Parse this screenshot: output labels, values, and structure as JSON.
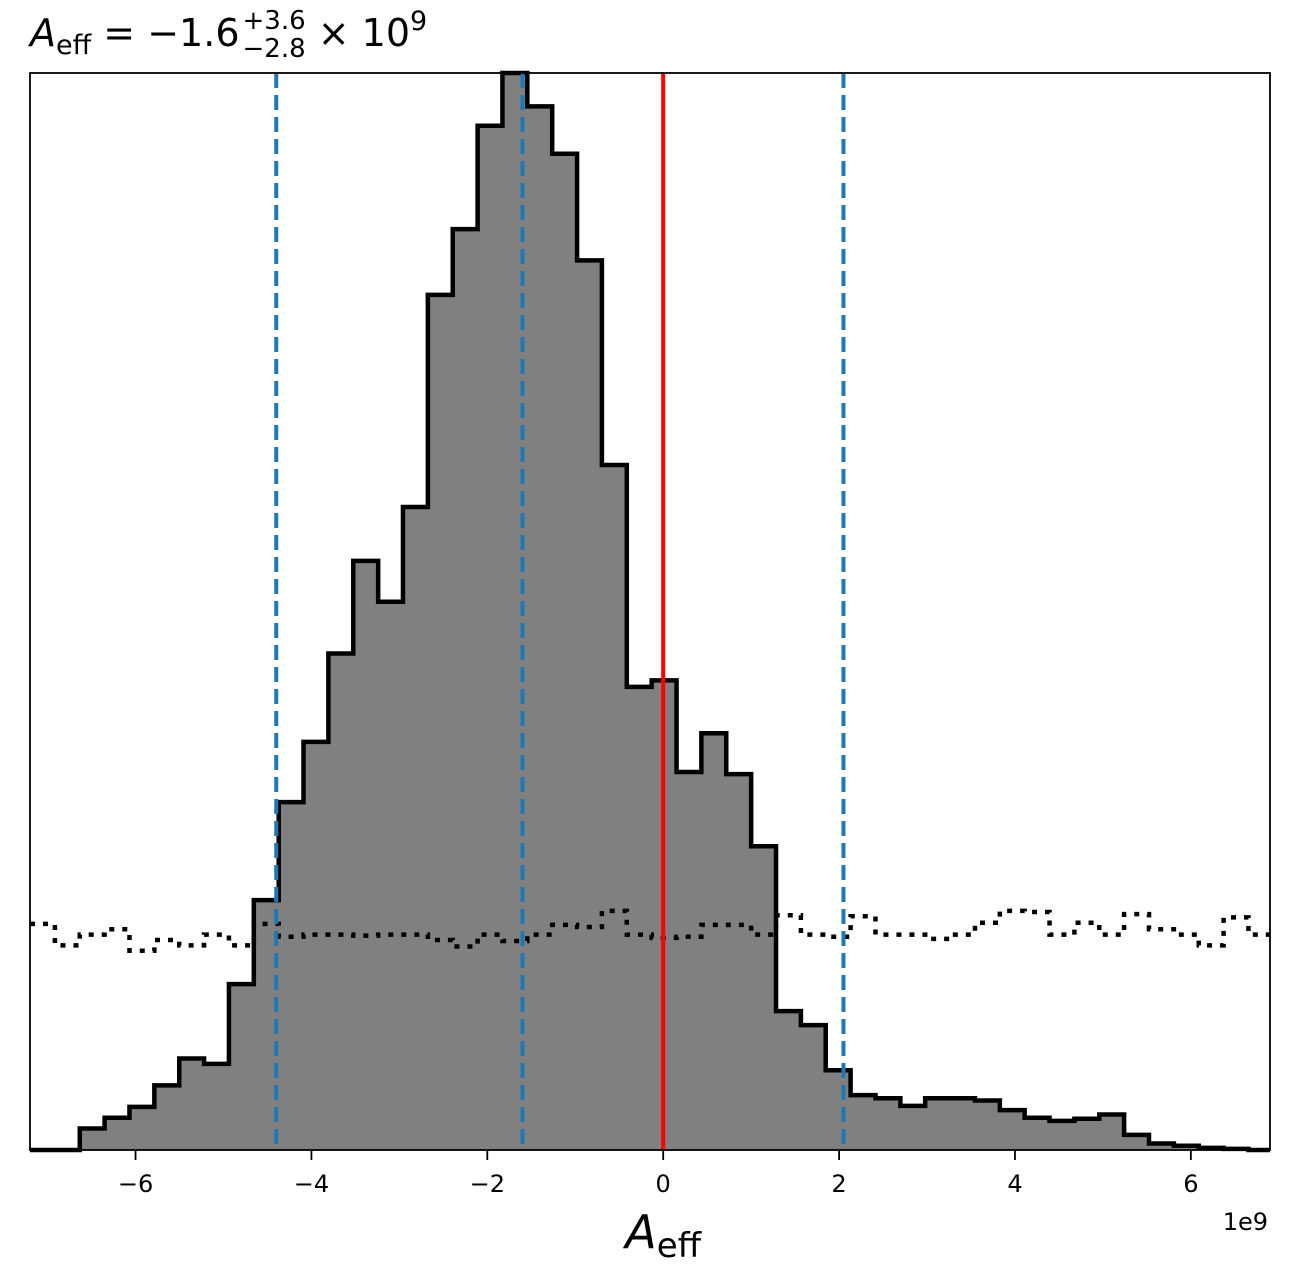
{
  "chart_data": {
    "type": "histogram",
    "title": {
      "symbol": "A",
      "symbol_sub": "eff",
      "text": " = −1.6",
      "sup": "+3.6",
      "sub": "−2.8",
      "suffix": " × 10",
      "exponent": "9"
    },
    "xlabel": {
      "symbol": "A",
      "sub": "eff"
    },
    "x_offset_label": "1e9",
    "xlim": [
      -7.2,
      6.9
    ],
    "ylim": [
      0,
      1.0
    ],
    "y_ticks_shown": false,
    "grid": false,
    "xticks": [
      {
        "value": -6,
        "label": "−6"
      },
      {
        "value": -4,
        "label": "−4"
      },
      {
        "value": -2,
        "label": "−2"
      },
      {
        "value": 0,
        "label": "0"
      },
      {
        "value": 2,
        "label": "2"
      },
      {
        "value": 4,
        "label": "4"
      },
      {
        "value": 6,
        "label": "6"
      }
    ],
    "bin_edges": [
      -7.2,
      -6.917,
      -6.634,
      -6.352,
      -6.069,
      -5.786,
      -5.503,
      -5.221,
      -4.938,
      -4.655,
      -4.372,
      -4.09,
      -3.807,
      -3.524,
      -3.241,
      -2.959,
      -2.676,
      -2.393,
      -2.11,
      -1.828,
      -1.545,
      -1.262,
      -0.979,
      -0.697,
      -0.414,
      -0.131,
      0.152,
      0.434,
      0.717,
      1.0,
      1.283,
      1.566,
      1.848,
      2.131,
      2.414,
      2.697,
      2.979,
      3.262,
      3.545,
      3.828,
      4.11,
      4.393,
      4.676,
      4.959,
      5.241,
      5.524,
      5.807,
      6.09,
      6.372,
      6.655,
      6.9
    ],
    "series": [
      {
        "style": "filled-step",
        "fill": "#808080",
        "edge": "#000000",
        "values": [
          0.0,
          0.0,
          0.02,
          0.03,
          0.04,
          0.06,
          0.085,
          0.08,
          0.154,
          0.232,
          0.323,
          0.379,
          0.461,
          0.547,
          0.509,
          0.597,
          0.794,
          0.855,
          0.951,
          1.0,
          0.969,
          0.925,
          0.826,
          0.636,
          0.43,
          0.436,
          0.351,
          0.387,
          0.349,
          0.282,
          0.129,
          0.116,
          0.074,
          0.051,
          0.048,
          0.041,
          0.048,
          0.048,
          0.046,
          0.037,
          0.03,
          0.027,
          0.029,
          0.033,
          0.014,
          0.006,
          0.004,
          0.002,
          0.001,
          0.0
        ]
      },
      {
        "style": "dotted-step",
        "edge": "#000000",
        "values": [
          0.21,
          0.19,
          0.2,
          0.205,
          0.185,
          0.195,
          0.19,
          0.2,
          0.19,
          0.21,
          0.198,
          0.2,
          0.2,
          0.199,
          0.2,
          0.2,
          0.195,
          0.189,
          0.2,
          0.194,
          0.2,
          0.209,
          0.207,
          0.222,
          0.2,
          0.197,
          0.198,
          0.209,
          0.209,
          0.2,
          0.218,
          0.2,
          0.198,
          0.217,
          0.2,
          0.2,
          0.196,
          0.2,
          0.211,
          0.222,
          0.221,
          0.2,
          0.211,
          0.2,
          0.219,
          0.205,
          0.2,
          0.19,
          0.216,
          0.2
        ]
      }
    ],
    "vertical_lines": [
      {
        "x": -4.4,
        "color": "#1f77b4",
        "style": "dashed"
      },
      {
        "x": -1.6,
        "color": "#1f77b4",
        "style": "dashed"
      },
      {
        "x": 2.05,
        "color": "#1f77b4",
        "style": "dashed"
      },
      {
        "x": 0.0,
        "color": "#ff0000",
        "style": "solid"
      }
    ]
  }
}
